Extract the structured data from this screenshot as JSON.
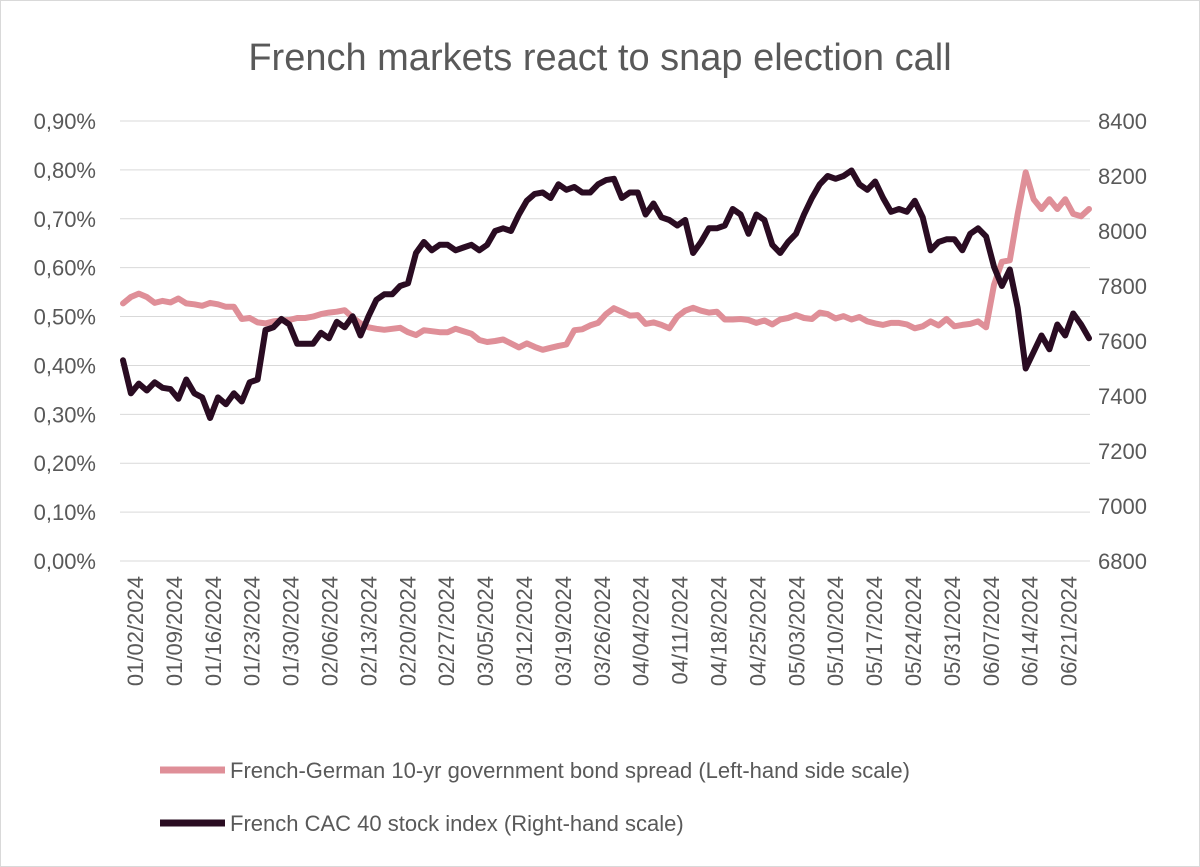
{
  "chart_data": {
    "type": "line",
    "title": "French markets react to snap election call",
    "x_tick_labels": [
      "01/02/2024",
      "01/09/2024",
      "01/16/2024",
      "01/23/2024",
      "01/30/2024",
      "02/06/2024",
      "02/13/2024",
      "02/20/2024",
      "02/27/2024",
      "03/05/2024",
      "03/12/2024",
      "03/19/2024",
      "03/26/2024",
      "04/04/2024",
      "04/11/2024",
      "04/18/2024",
      "04/25/2024",
      "05/03/2024",
      "05/10/2024",
      "05/17/2024",
      "05/24/2024",
      "05/31/2024",
      "06/07/2024",
      "06/14/2024",
      "06/21/2024"
    ],
    "y_left": {
      "ticks": [
        "0,00%",
        "0,10%",
        "0,20%",
        "0,30%",
        "0,40%",
        "0,50%",
        "0,60%",
        "0,70%",
        "0,80%",
        "0,90%"
      ],
      "range": [
        0,
        0.9
      ]
    },
    "y_right": {
      "ticks": [
        "6800",
        "7000",
        "7200",
        "7400",
        "7600",
        "7800",
        "8000",
        "8200",
        "8400"
      ],
      "range": [
        6800,
        8400
      ]
    },
    "grid": true,
    "legend_position": "bottom",
    "series": [
      {
        "name": "French-German 10-yr government bond spread (Left-hand side scale)",
        "axis": "left",
        "color": "#df8f98",
        "values": [
          0.527,
          0.54,
          0.547,
          0.54,
          0.528,
          0.532,
          0.529,
          0.537,
          0.527,
          0.525,
          0.522,
          0.528,
          0.525,
          0.52,
          0.52,
          0.495,
          0.497,
          0.488,
          0.486,
          0.49,
          0.492,
          0.493,
          0.497,
          0.497,
          0.5,
          0.505,
          0.508,
          0.51,
          0.513,
          0.498,
          0.486,
          0.478,
          0.475,
          0.473,
          0.475,
          0.477,
          0.468,
          0.462,
          0.472,
          0.47,
          0.468,
          0.468,
          0.475,
          0.47,
          0.465,
          0.452,
          0.448,
          0.45,
          0.453,
          0.445,
          0.437,
          0.445,
          0.438,
          0.432,
          0.436,
          0.44,
          0.443,
          0.472,
          0.474,
          0.482,
          0.487,
          0.505,
          0.517,
          0.51,
          0.502,
          0.503,
          0.485,
          0.488,
          0.483,
          0.476,
          0.5,
          0.512,
          0.518,
          0.512,
          0.508,
          0.51,
          0.494,
          0.494,
          0.495,
          0.493,
          0.487,
          0.492,
          0.484,
          0.494,
          0.497,
          0.503,
          0.497,
          0.495,
          0.508,
          0.505,
          0.496,
          0.501,
          0.494,
          0.499,
          0.49,
          0.486,
          0.483,
          0.487,
          0.487,
          0.484,
          0.476,
          0.48,
          0.49,
          0.482,
          0.495,
          0.48,
          0.483,
          0.485,
          0.49,
          0.478,
          0.565,
          0.612,
          0.615,
          0.71,
          0.795,
          0.74,
          0.72,
          0.74,
          0.72,
          0.74,
          0.71,
          0.705,
          0.72
        ]
      },
      {
        "name": "French CAC 40 stock index (Right-hand scale)",
        "axis": "right",
        "color": "#2a0c22",
        "values": [
          7530,
          7410,
          7445,
          7420,
          7450,
          7430,
          7425,
          7390,
          7460,
          7410,
          7395,
          7320,
          7395,
          7370,
          7410,
          7380,
          7450,
          7460,
          7640,
          7650,
          7680,
          7660,
          7590,
          7590,
          7590,
          7630,
          7610,
          7670,
          7650,
          7690,
          7620,
          7690,
          7750,
          7770,
          7770,
          7800,
          7810,
          7920,
          7960,
          7930,
          7950,
          7950,
          7930,
          7940,
          7950,
          7930,
          7950,
          8000,
          8010,
          8000,
          8060,
          8110,
          8135,
          8140,
          8120,
          8170,
          8150,
          8160,
          8140,
          8140,
          8170,
          8185,
          8190,
          8120,
          8140,
          8140,
          8060,
          8100,
          8050,
          8040,
          8020,
          8040,
          7920,
          7960,
          8010,
          8010,
          8020,
          8080,
          8060,
          7990,
          8060,
          8040,
          7950,
          7920,
          7960,
          7990,
          8060,
          8120,
          8170,
          8200,
          8190,
          8200,
          8220,
          8170,
          8150,
          8180,
          8120,
          8070,
          8080,
          8070,
          8110,
          8050,
          7930,
          7960,
          7970,
          7970,
          7930,
          7990,
          8010,
          7980,
          7870,
          7800,
          7860,
          7720,
          7500,
          7560,
          7620,
          7570,
          7660,
          7620,
          7700,
          7660,
          7610
        ]
      }
    ]
  }
}
